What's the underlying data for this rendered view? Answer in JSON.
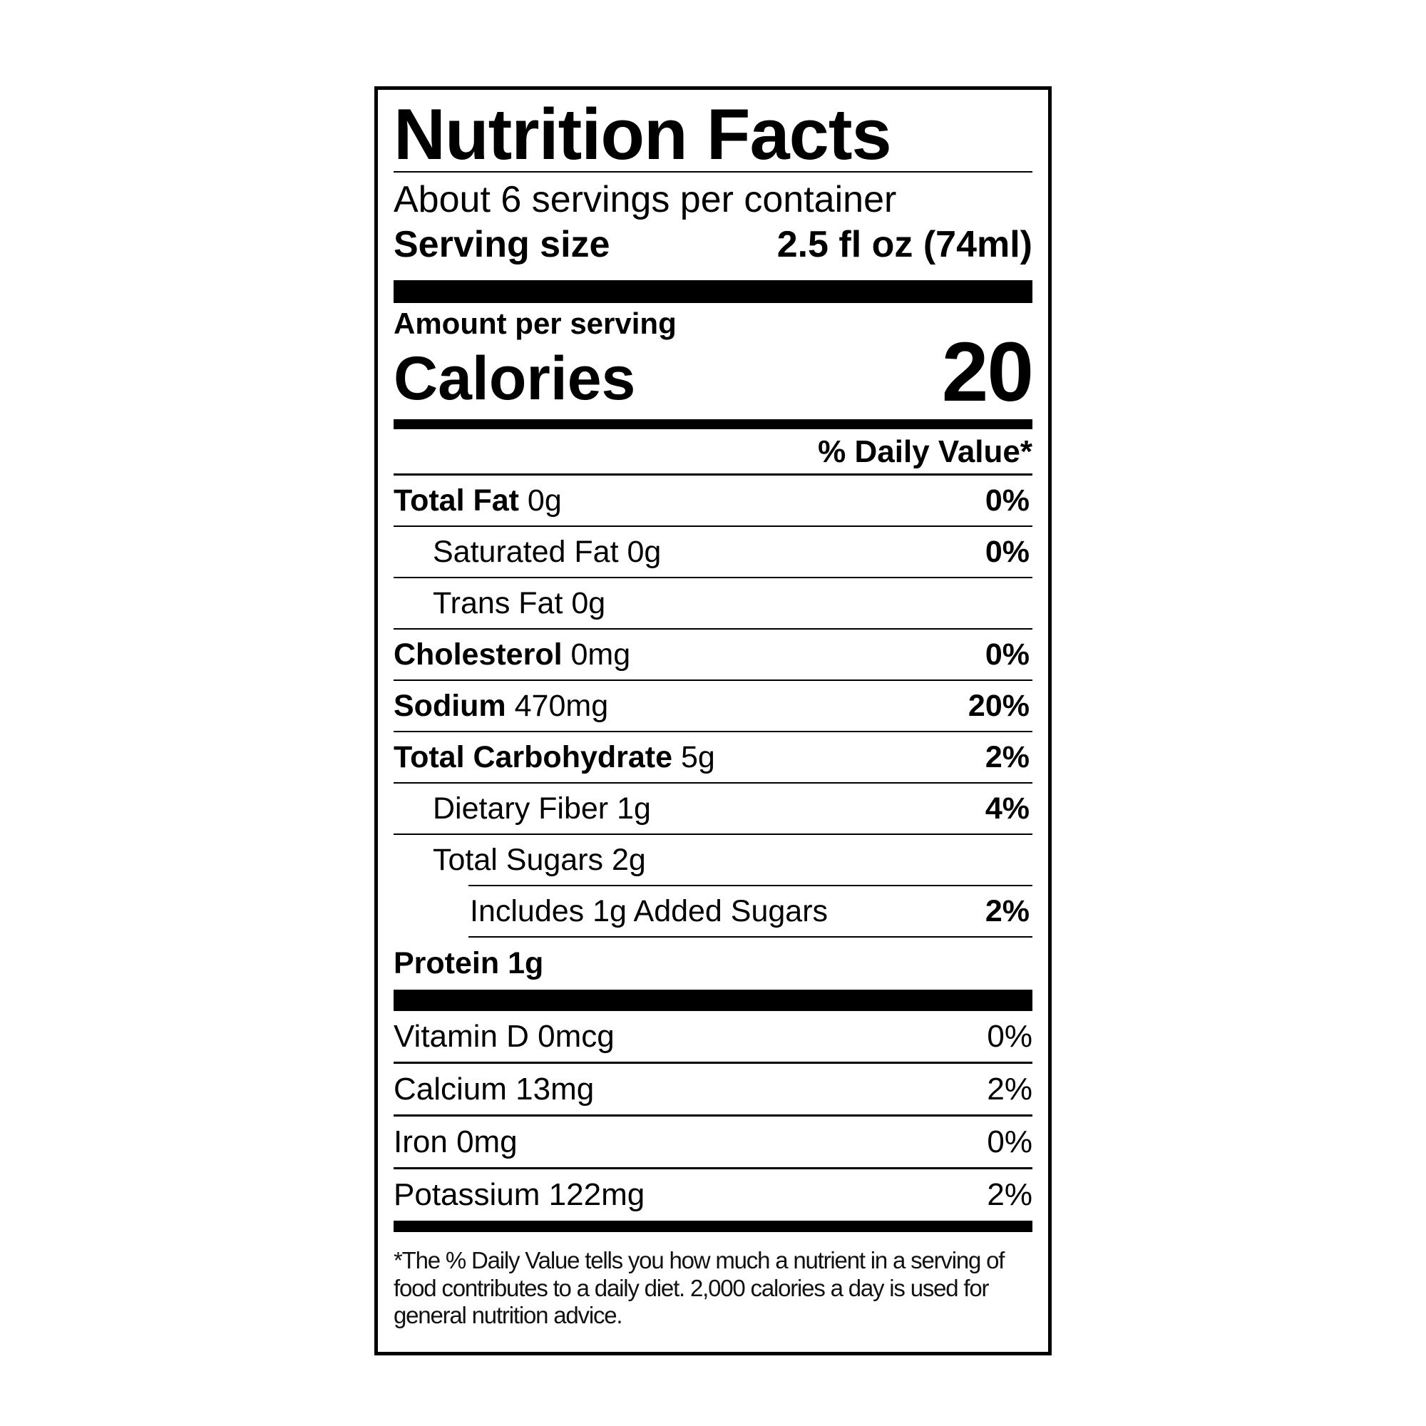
{
  "title": "Nutrition Facts",
  "servings_per_container": "About 6 servings per container",
  "serving_size": {
    "label": "Serving size",
    "value": "2.5 fl oz (74ml)"
  },
  "amount_per_serving": "Amount per serving",
  "calories": {
    "label": "Calories",
    "value": "20"
  },
  "daily_value_header": "% Daily Value*",
  "nutrients": [
    {
      "name": "Total Fat",
      "amount": "0g",
      "dv": "0%"
    },
    {
      "name": "Saturated Fat",
      "amount": "0g",
      "dv": "0%"
    },
    {
      "name": "Trans Fat",
      "amount": "0g",
      "dv": ""
    },
    {
      "name": "Cholesterol",
      "amount": "0mg",
      "dv": "0%"
    },
    {
      "name": "Sodium",
      "amount": "470mg",
      "dv": "20%"
    },
    {
      "name": "Total Carbohydrate",
      "amount": "5g",
      "dv": "2%"
    },
    {
      "name": "Dietary Fiber",
      "amount": "1g",
      "dv": "4%"
    },
    {
      "name": "Total Sugars",
      "amount": "2g",
      "dv": ""
    },
    {
      "name": "Includes 1g Added Sugars",
      "amount": "",
      "dv": "2%"
    },
    {
      "name": "Protein",
      "amount": "1g",
      "dv": ""
    }
  ],
  "vitamins": [
    {
      "name": "Vitamin D",
      "amount": "0mcg",
      "dv": "0%"
    },
    {
      "name": "Calcium",
      "amount": "13mg",
      "dv": "2%"
    },
    {
      "name": "Iron",
      "amount": "0mg",
      "dv": "0%"
    },
    {
      "name": "Potassium",
      "amount": "122mg",
      "dv": "2%"
    }
  ],
  "footnote": "*The % Daily Value tells you how much a nutrient in a serving of food contributes to a daily diet. 2,000 calories a day is used for general nutrition advice."
}
